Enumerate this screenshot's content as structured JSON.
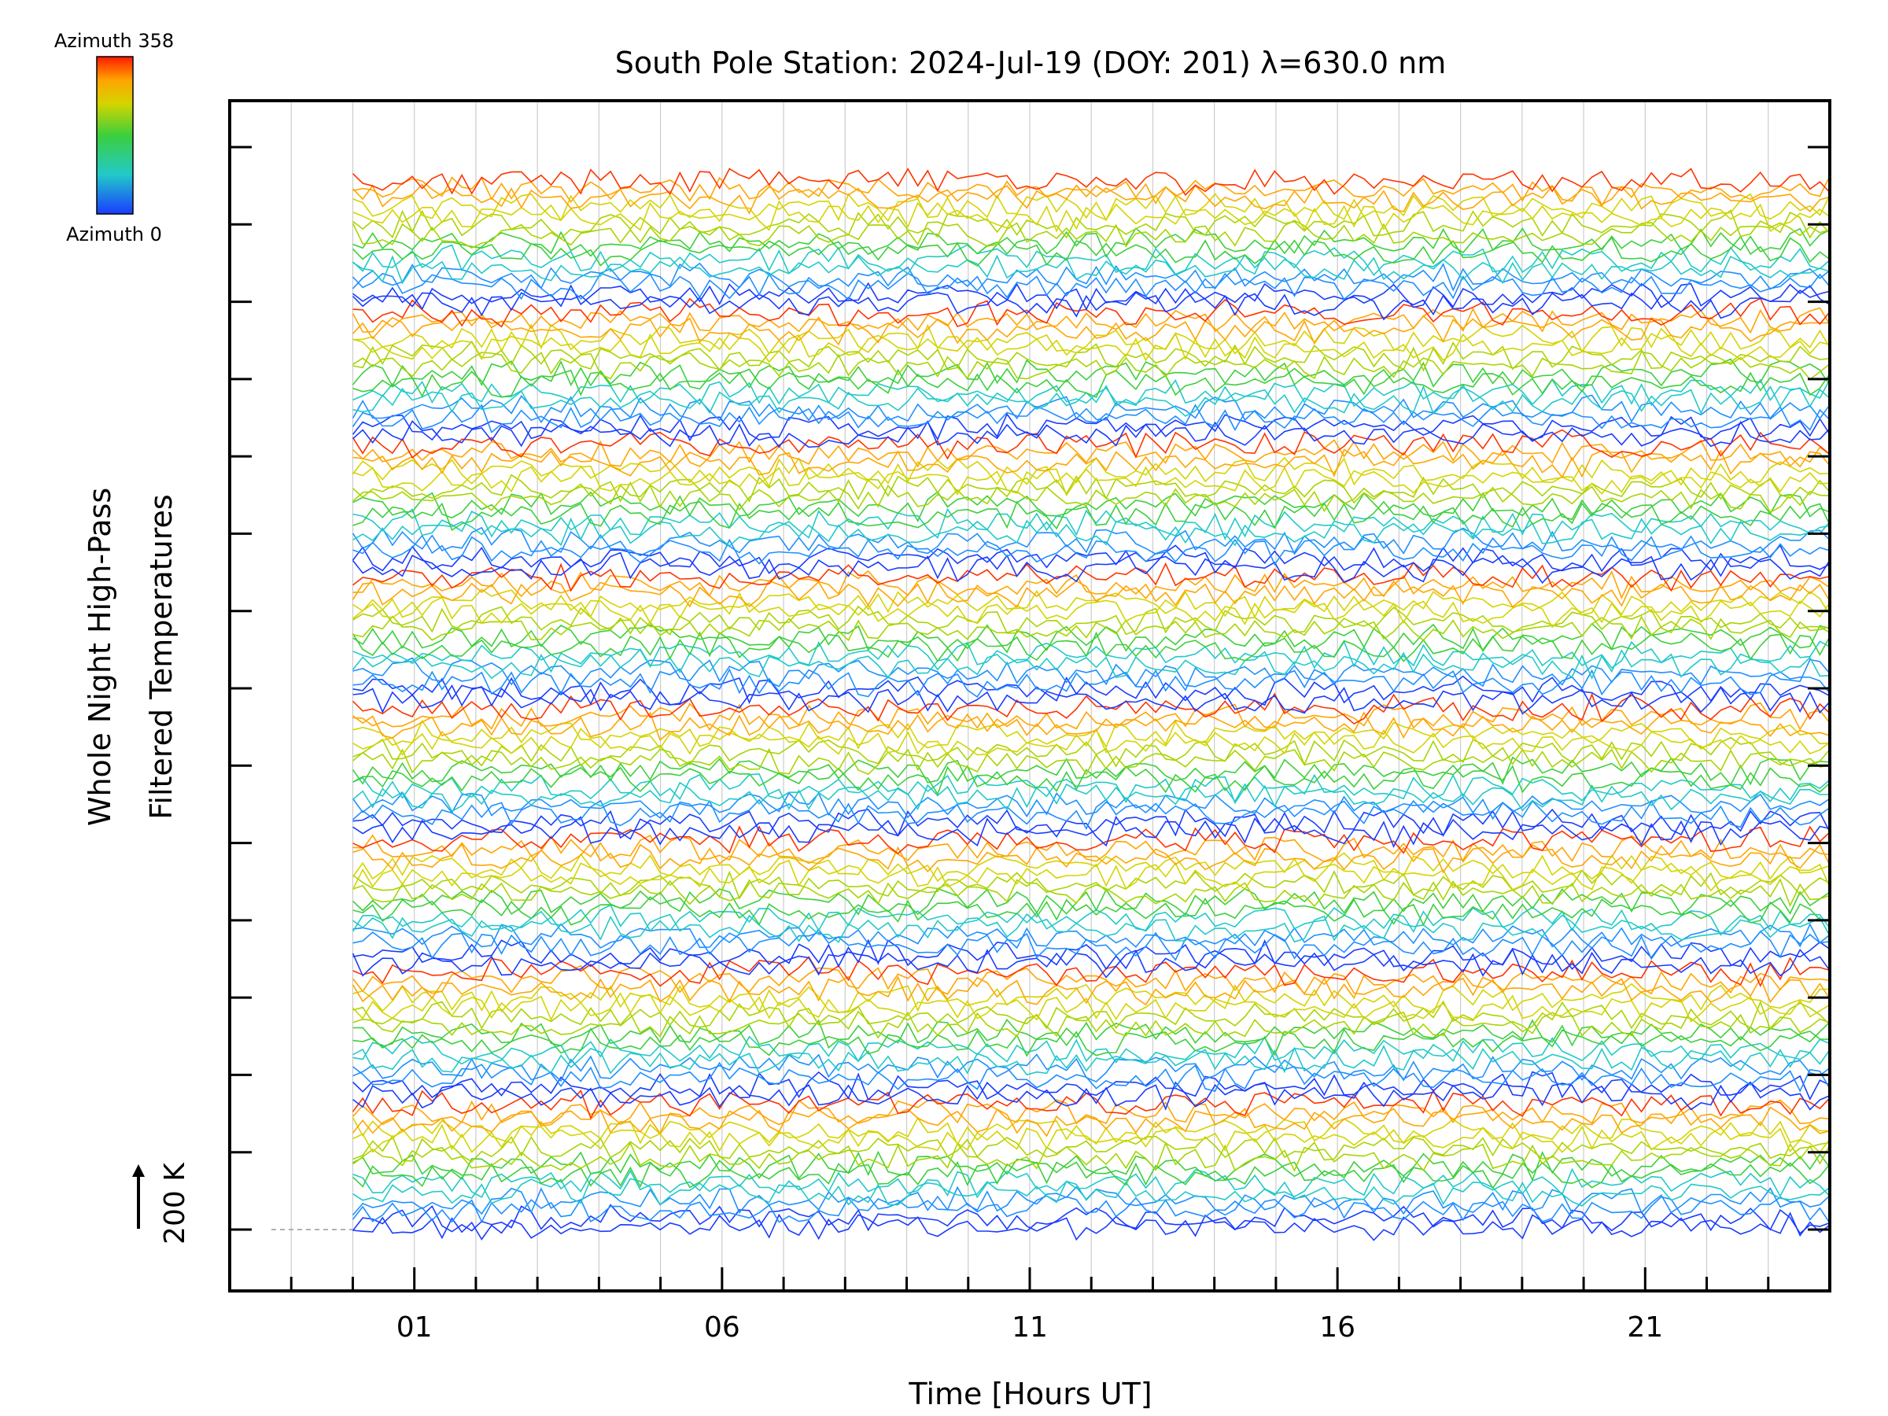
{
  "chart_data": {
    "type": "line",
    "title": "South Pole Station: 2024-Jul-19 (DOY: 201) λ=630.0 nm",
    "xlabel": "Time [Hours UT]",
    "ylabel_lines": [
      "Whole Night High-Pass",
      "Filtered Temperatures"
    ],
    "x_ticks": [
      "01",
      "06",
      "11",
      "16",
      "21"
    ],
    "x_tick_values": [
      1,
      6,
      11,
      16,
      21
    ],
    "xlim": [
      -2,
      24
    ],
    "data_x_range": [
      0,
      24
    ],
    "scale_reference": "200 K",
    "colorbar": {
      "top_label": "Azimuth  358",
      "bottom_label": "Azimuth  0",
      "min": 0,
      "max": 358
    },
    "colors": [
      "#1a3cff",
      "#1f8fff",
      "#22c9c9",
      "#3ccf3c",
      "#a8d400",
      "#d4d400",
      "#ffa500",
      "#ff3300"
    ],
    "grid": true,
    "stacks": 8,
    "traces_per_stack": 15,
    "n_points": 150,
    "noise_amplitude_K": 40
  }
}
